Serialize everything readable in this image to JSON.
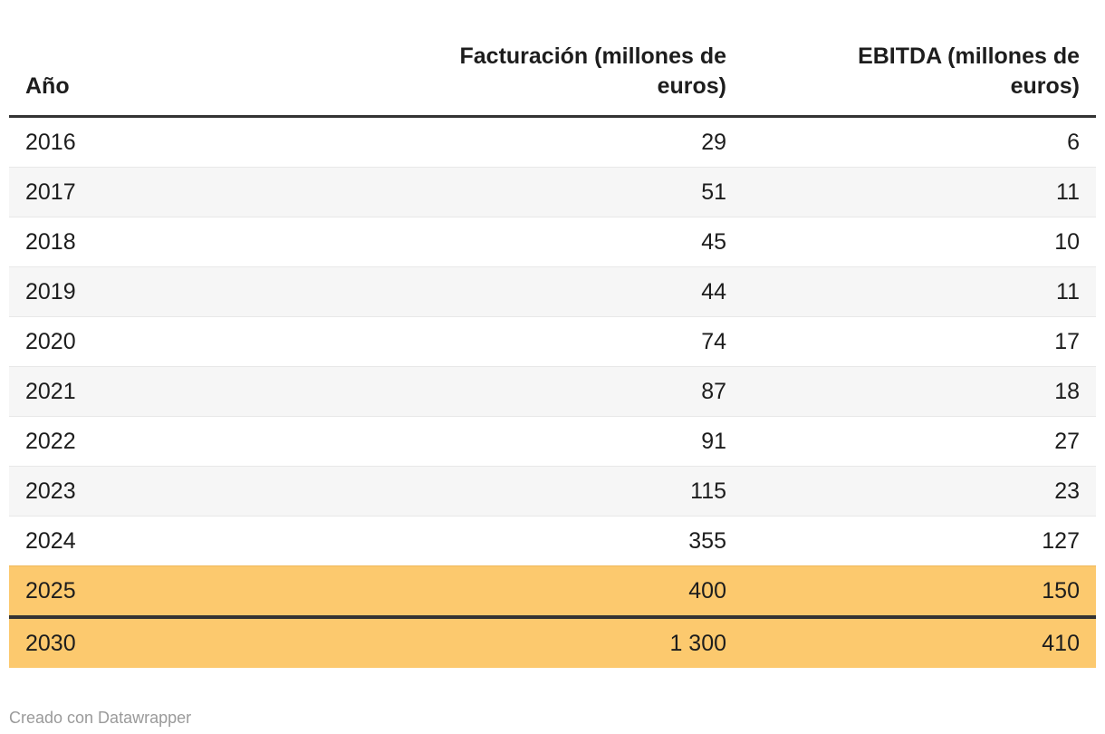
{
  "table": {
    "columns": [
      {
        "label": "Año",
        "align": "left"
      },
      {
        "label": "Facturación (millones de euros)",
        "align": "right"
      },
      {
        "label": "EBITDA (millones de euros)",
        "align": "right"
      }
    ],
    "rows": [
      {
        "year": "2016",
        "facturacion": "29",
        "ebitda": "6"
      },
      {
        "year": "2017",
        "facturacion": "51",
        "ebitda": "11"
      },
      {
        "year": "2018",
        "facturacion": "45",
        "ebitda": "10"
      },
      {
        "year": "2019",
        "facturacion": "44",
        "ebitda": "11"
      },
      {
        "year": "2020",
        "facturacion": "74",
        "ebitda": "17"
      },
      {
        "year": "2021",
        "facturacion": "87",
        "ebitda": "18"
      },
      {
        "year": "2022",
        "facturacion": "91",
        "ebitda": "27"
      },
      {
        "year": "2023",
        "facturacion": "115",
        "ebitda": "23"
      },
      {
        "year": "2024",
        "facturacion": "355",
        "ebitda": "127"
      },
      {
        "year": "2025",
        "facturacion": "400",
        "ebitda": "150",
        "highlight": true
      },
      {
        "year": "2030",
        "facturacion": "1 300",
        "ebitda": "410",
        "highlight": true,
        "thick_border_top": true
      }
    ]
  },
  "footer": {
    "credit": "Creado con Datawrapper"
  },
  "colors": {
    "highlight": "#fcc96e",
    "dark_border": "#333333",
    "zebra": "#f6f6f6",
    "text": "#1d1d1d",
    "divider": "#e8e8e8",
    "highlight_divider": "#efb85c",
    "footer_gray": "#9a9a9a"
  },
  "chart_data": {
    "type": "table",
    "title": "",
    "categories": [
      2016,
      2017,
      2018,
      2019,
      2020,
      2021,
      2022,
      2023,
      2024,
      2025,
      2030
    ],
    "series": [
      {
        "name": "Facturación (millones de euros)",
        "values": [
          29,
          51,
          45,
          44,
          74,
          87,
          91,
          115,
          355,
          400,
          1300
        ]
      },
      {
        "name": "EBITDA (millones de euros)",
        "values": [
          6,
          11,
          10,
          11,
          17,
          18,
          27,
          23,
          127,
          150,
          410
        ]
      }
    ],
    "highlighted_categories": [
      2025,
      2030
    ],
    "layout": {
      "zebra_striping": true,
      "value_alignment": "right",
      "credit": "Creado con Datawrapper"
    }
  }
}
